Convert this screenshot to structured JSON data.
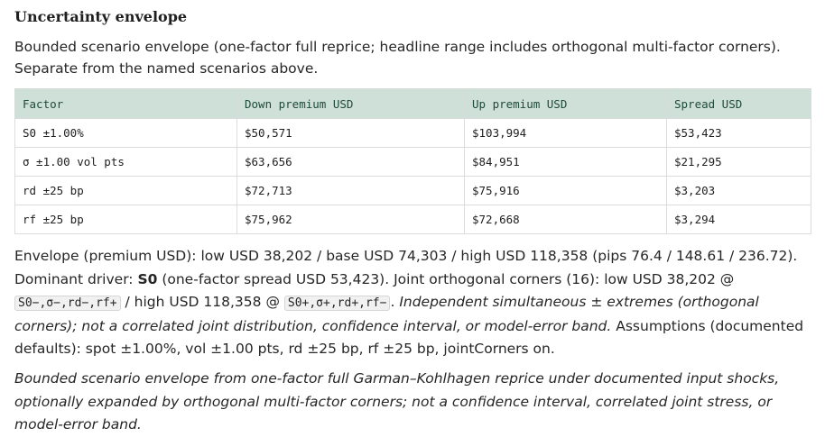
{
  "section": {
    "title": "Uncertainty envelope",
    "intro": "Bounded scenario envelope (one-factor full reprice; headline range includes orthogonal multi-factor corners). Separate from the named scenarios above."
  },
  "table": {
    "headers": [
      "Factor",
      "Down premium USD",
      "Up premium USD",
      "Spread USD"
    ],
    "rows": [
      [
        "S0 ±1.00%",
        "$50,571",
        "$103,994",
        "$53,423"
      ],
      [
        "σ ±1.00 vol pts",
        "$63,656",
        "$84,951",
        "$21,295"
      ],
      [
        "rd ±25 bp",
        "$72,713",
        "$75,916",
        "$3,203"
      ],
      [
        "rf ±25 bp",
        "$75,962",
        "$72,668",
        "$3,294"
      ]
    ]
  },
  "summary": {
    "envelope_text": "Envelope (premium USD): low USD 38,202 / base USD 74,303 / high USD 118,358 (pips 76.4 / 148.61 / 236.72). Dominant driver: ",
    "dominant_driver": "S0",
    "dominant_detail": " (one-factor spread USD 53,423). Joint orthogonal corners (16): low USD 38,202 @ ",
    "low_corner": "S0−,σ−,rd−,rf+",
    "high_prefix": " / high USD 118,358 @ ",
    "high_corner": "S0+,σ+,rd+,rf−",
    "separator": ". ",
    "caveat": "Independent simultaneous ± extremes (orthogonal corners); not a correlated joint distribution, confidence interval, or model-error band.",
    "assumptions": " Assumptions (documented defaults): spot ±1.00%, vol ±1.00 pts, rd ±25 bp, rf ±25 bp, jointCorners on."
  },
  "footnote": "Bounded scenario envelope from one-factor full Garman–Kohlhagen reprice under documented input shocks, optionally expanded by orthogonal multi-factor corners; not a confidence interval, correlated joint stress, or model-error band."
}
